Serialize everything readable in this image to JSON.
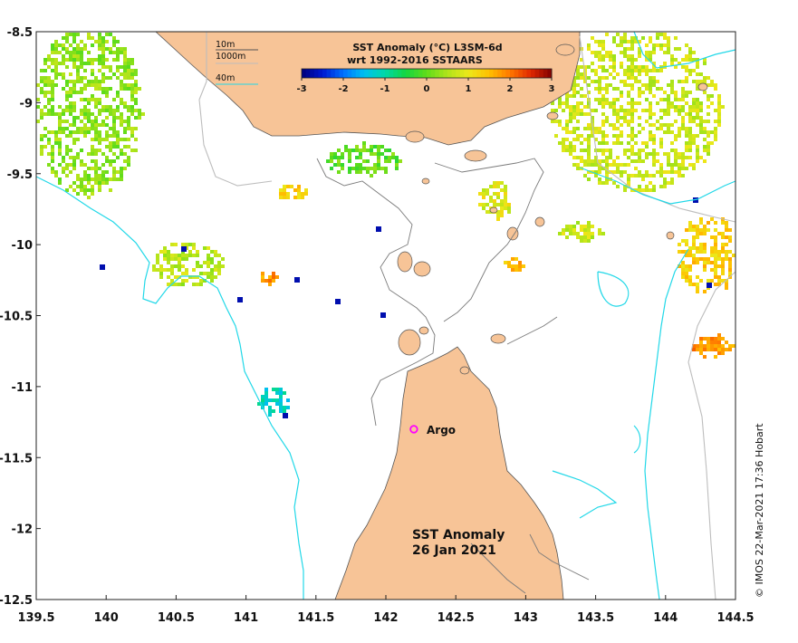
{
  "title": {
    "line1": "SST Anomaly (°C) L3SM-6d",
    "line2": "wrt 1992-2016 SSTAARS"
  },
  "colorbar": {
    "ticks": [
      "-3",
      "-2",
      "-1",
      "0",
      "1",
      "2",
      "3"
    ],
    "range": [
      -3,
      3
    ],
    "colors": [
      "#00007a",
      "#0018d0",
      "#0070ff",
      "#00c0f0",
      "#00d8a8",
      "#14d640",
      "#60dc1a",
      "#b0e41a",
      "#ece81a",
      "#ffc000",
      "#ff7800",
      "#e02800",
      "#800000"
    ]
  },
  "depth_legend": {
    "items": [
      {
        "label": "10m",
        "color": "#555555"
      },
      {
        "label": "1000m",
        "color": "#bdbdbd"
      },
      {
        "label": "40m",
        "color": "#22d8e8"
      }
    ]
  },
  "axes": {
    "x_ticks": [
      "139.5",
      "140",
      "140.5",
      "141",
      "141.5",
      "142",
      "142.5",
      "143",
      "143.5",
      "144",
      "144.5"
    ],
    "y_ticks": [
      "-8.5",
      "-9",
      "-9.5",
      "-10",
      "-10.5",
      "-11",
      "-11.5",
      "-12",
      "-12.5"
    ],
    "lon_range": [
      139.5,
      144.5
    ],
    "lat_range": [
      -12.5,
      -8.5
    ]
  },
  "annotations": {
    "argo_label": "Argo",
    "argo_color": "#ff00ff",
    "argo_lon": 142.2,
    "argo_lat": -11.3,
    "map_title": "SST Anomaly",
    "map_date": "26 Jan 2021"
  },
  "credit": "© IMOS 22-Mar-2021 17:36 Hobart",
  "colors": {
    "land": "#f7c497",
    "ocean": "#ffffff",
    "contour_10m": "#555555",
    "contour_1000m": "#bdbdbd",
    "contour_40m": "#22d8e8"
  }
}
